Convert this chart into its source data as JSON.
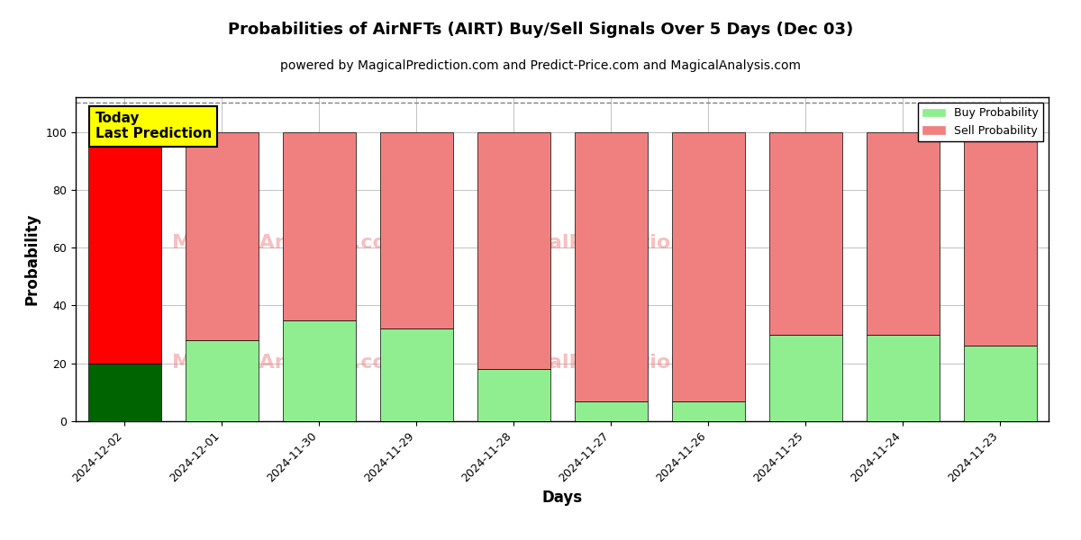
{
  "title": "Probabilities of AirNFTs (AIRT) Buy/Sell Signals Over 5 Days (Dec 03)",
  "subtitle": "powered by MagicalPrediction.com and Predict-Price.com and MagicalAnalysis.com",
  "xlabel": "Days",
  "ylabel": "Probability",
  "categories": [
    "2024-12-02",
    "2024-12-01",
    "2024-11-30",
    "2024-11-29",
    "2024-11-28",
    "2024-11-27",
    "2024-11-26",
    "2024-11-25",
    "2024-11-24",
    "2024-11-23"
  ],
  "buy_values": [
    20,
    28,
    35,
    32,
    18,
    7,
    7,
    30,
    30,
    26
  ],
  "sell_values": [
    80,
    72,
    65,
    68,
    82,
    93,
    93,
    70,
    70,
    74
  ],
  "today_index": 0,
  "buy_color_today": "#006400",
  "sell_color_today": "#ff0000",
  "buy_color_normal": "#90EE90",
  "sell_color_normal": "#f08080",
  "today_box_color": "#ffff00",
  "today_label": "Today\nLast Prediction",
  "ylim": [
    0,
    112
  ],
  "dashed_line_y": 110,
  "legend_buy": "Buy Probability",
  "legend_sell": "Sell Probability",
  "background_color": "#ffffff",
  "grid_color": "#aaaaaa",
  "title_fontsize": 13,
  "subtitle_fontsize": 10,
  "axis_label_fontsize": 12,
  "tick_fontsize": 9,
  "bar_width": 0.75
}
